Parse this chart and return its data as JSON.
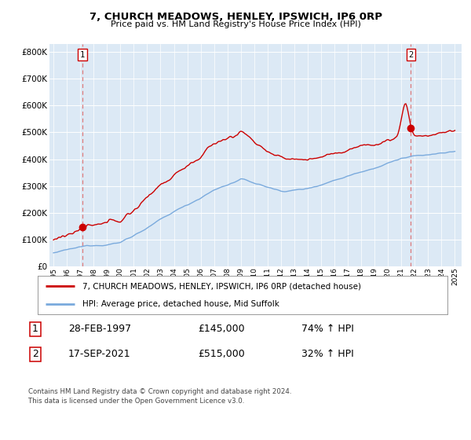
{
  "title": "7, CHURCH MEADOWS, HENLEY, IPSWICH, IP6 0RP",
  "subtitle": "Price paid vs. HM Land Registry's House Price Index (HPI)",
  "ytick_values": [
    0,
    100000,
    200000,
    300000,
    400000,
    500000,
    600000,
    700000,
    800000
  ],
  "ylim": [
    0,
    830000
  ],
  "xlim_start": 1994.7,
  "xlim_end": 2025.5,
  "background_color": "#dce9f5",
  "grid_color": "#ffffff",
  "sale1_date_float": 1997.16,
  "sale1_price": 145000,
  "sale2_date_float": 2021.71,
  "sale2_price": 515000,
  "legend_line1": "7, CHURCH MEADOWS, HENLEY, IPSWICH, IP6 0RP (detached house)",
  "legend_line2": "HPI: Average price, detached house, Mid Suffolk",
  "table_row1": [
    "1",
    "28-FEB-1997",
    "£145,000",
    "74% ↑ HPI"
  ],
  "table_row2": [
    "2",
    "17-SEP-2021",
    "£515,000",
    "32% ↑ HPI"
  ],
  "footer": "Contains HM Land Registry data © Crown copyright and database right 2024.\nThis data is licensed under the Open Government Licence v3.0.",
  "red_color": "#cc0000",
  "blue_color": "#7aaadd",
  "dashed_color": "#dd6666"
}
